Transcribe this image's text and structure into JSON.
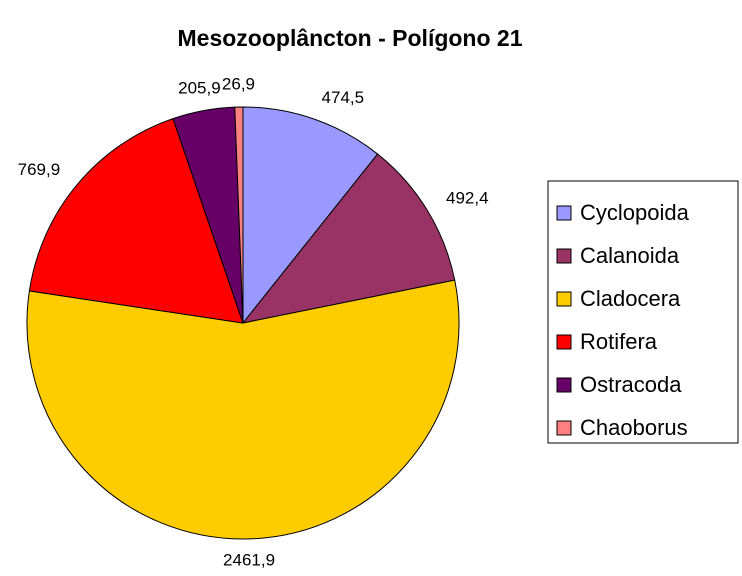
{
  "chart_data": {
    "type": "pie",
    "title": "Mesozooplâncton - Polígono 21",
    "categories": [
      "Cyclopoida",
      "Calanoida",
      "Cladocera",
      "Rotifera",
      "Ostracoda",
      "Chaoborus"
    ],
    "values": [
      474.5,
      492.4,
      2461.9,
      769.9,
      205.9,
      26.9
    ],
    "value_labels": [
      "474,5",
      "492,4",
      "2461,9",
      "769,9",
      "205,9",
      "26,9"
    ],
    "colors": [
      "#9999ff",
      "#993366",
      "#ffcc00",
      "#ff0000",
      "#660066",
      "#ff8080"
    ],
    "legend": "right"
  }
}
